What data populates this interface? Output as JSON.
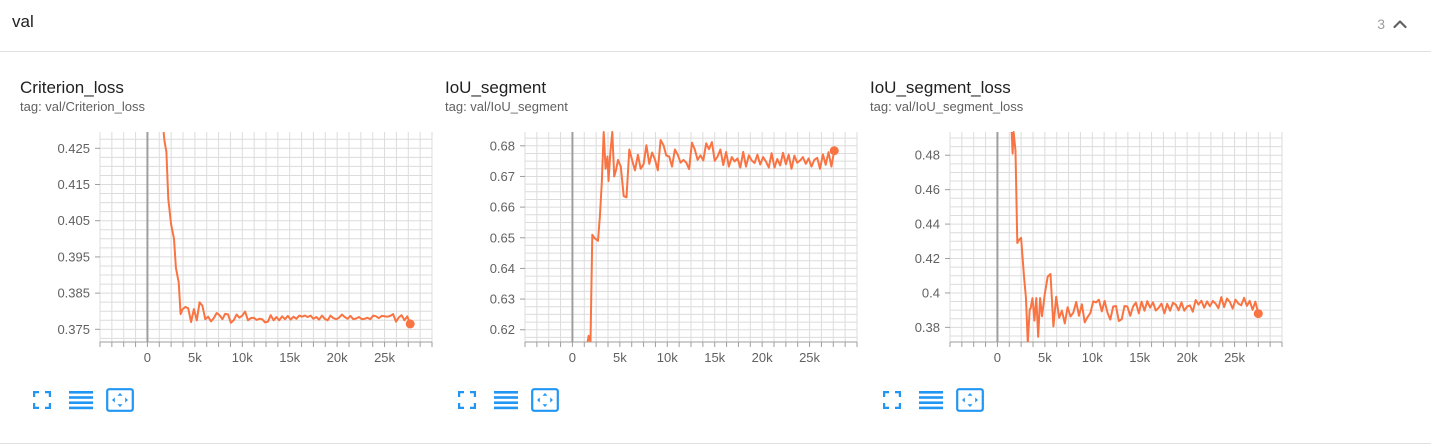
{
  "section": {
    "title": "val",
    "count": "3",
    "collapse_icon": "chevron-up-icon"
  },
  "colors": {
    "series": "#f97442",
    "grid": "#dcdcdc",
    "axis_tick": "#9e9e9e",
    "zero_line": "#9e9e9e",
    "tool_icon": "#2196f3"
  },
  "toolbar_icons": [
    "fullscreen-icon",
    "toggle-log-scale-icon",
    "fit-domain-icon"
  ],
  "chart_data": [
    {
      "type": "line",
      "title": "Criterion_loss",
      "subtitle": "tag: val/Criterion_loss",
      "xlabel": "",
      "ylabel": "",
      "xlim": [
        -5000,
        30000
      ],
      "ylim": [
        0.3715,
        0.4295
      ],
      "x_ticks": [
        0,
        5000,
        10000,
        15000,
        20000,
        25000
      ],
      "x_tick_labels": [
        "0",
        "5k",
        "10k",
        "15k",
        "20k",
        "25k"
      ],
      "y_ticks": [
        0.375,
        0.385,
        0.395,
        0.405,
        0.415,
        0.425
      ],
      "y_tick_labels": [
        "0.375",
        "0.385",
        "0.395",
        "0.405",
        "0.415",
        "0.425"
      ],
      "y_minor_step": 0.0025,
      "x_minor_step": 1250,
      "grid": true,
      "series": [
        {
          "x": [
            1700,
            1800,
            2000,
            2200,
            2500,
            2800,
            3000,
            3300,
            3500,
            3700,
            4000,
            4300,
            4600,
            4900,
            5200,
            5500,
            5800,
            6100,
            6400,
            6700,
            7000,
            7300,
            7600,
            7900,
            8200,
            8500,
            8800,
            9100,
            9400,
            9700,
            10000,
            10300,
            10600,
            10900,
            11200,
            11500,
            11800,
            12100,
            12400,
            12700,
            13000,
            13300,
            13600,
            13900,
            14200,
            14500,
            14800,
            15100,
            15400,
            15700,
            16000,
            16300,
            16600,
            16900,
            17200,
            17500,
            17800,
            18100,
            18400,
            18700,
            19000,
            19300,
            19600,
            19900,
            20200,
            20500,
            20800,
            21100,
            21400,
            21700,
            22000,
            22300,
            22600,
            22900,
            23200,
            23500,
            23800,
            24100,
            24400,
            24700,
            25000,
            25300,
            25600,
            25900,
            26200,
            26500,
            26800,
            27100,
            27400,
            27700
          ],
          "values": [
            0.4295,
            0.427,
            0.424,
            0.411,
            0.404,
            0.4,
            0.392,
            0.388,
            0.3792,
            0.3805,
            0.3812,
            0.3808,
            0.377,
            0.3806,
            0.3775,
            0.3825,
            0.3815,
            0.3778,
            0.3785,
            0.3772,
            0.3781,
            0.3795,
            0.3789,
            0.3778,
            0.3793,
            0.3791,
            0.3768,
            0.3775,
            0.3791,
            0.3782,
            0.3788,
            0.3799,
            0.3775,
            0.3781,
            0.3782,
            0.3776,
            0.3779,
            0.3778,
            0.3769,
            0.3771,
            0.3789,
            0.3775,
            0.3784,
            0.3775,
            0.3786,
            0.3778,
            0.3787,
            0.3777,
            0.3785,
            0.3779,
            0.3788,
            0.3785,
            0.3788,
            0.3784,
            0.3788,
            0.3779,
            0.3784,
            0.3777,
            0.3788,
            0.3779,
            0.3775,
            0.3788,
            0.3781,
            0.3778,
            0.3782,
            0.3791,
            0.3784,
            0.3779,
            0.3787,
            0.3778,
            0.378,
            0.3784,
            0.3778,
            0.3779,
            0.3782,
            0.3778,
            0.3788,
            0.3786,
            0.3781,
            0.3787,
            0.3786,
            0.3785,
            0.3787,
            0.3792,
            0.3771,
            0.3783,
            0.3789,
            0.3775,
            0.3786,
            0.3765
          ]
        }
      ]
    },
    {
      "type": "line",
      "title": "IoU_segment",
      "subtitle": "tag: val/IoU_segment",
      "xlabel": "",
      "ylabel": "",
      "xlim": [
        -5000,
        30000
      ],
      "ylim": [
        0.616,
        0.6845
      ],
      "x_ticks": [
        0,
        5000,
        10000,
        15000,
        20000,
        25000
      ],
      "x_tick_labels": [
        "0",
        "5k",
        "10k",
        "15k",
        "20k",
        "25k"
      ],
      "y_ticks": [
        0.62,
        0.63,
        0.64,
        0.65,
        0.66,
        0.67,
        0.68
      ],
      "y_tick_labels": [
        "0.62",
        "0.63",
        "0.64",
        "0.65",
        "0.66",
        "0.67",
        "0.68"
      ],
      "y_minor_step": 0.0025,
      "x_minor_step": 1250,
      "grid": true,
      "series": [
        {
          "x": [
            1600,
            1700,
            1900,
            2100,
            2300,
            2700,
            2900,
            3100,
            3300,
            3500,
            3700,
            3800,
            4000,
            4200,
            4400,
            4600,
            4800,
            5100,
            5400,
            5700,
            6000,
            6300,
            6600,
            6900,
            7200,
            7500,
            7800,
            8100,
            8400,
            8700,
            9000,
            9300,
            9600,
            9900,
            10200,
            10500,
            10800,
            11100,
            11400,
            11700,
            12000,
            12300,
            12600,
            12900,
            13200,
            13500,
            13800,
            14100,
            14400,
            14700,
            15000,
            15300,
            15600,
            15900,
            16200,
            16500,
            16800,
            17100,
            17400,
            17700,
            18000,
            18300,
            18600,
            18900,
            19200,
            19500,
            19800,
            20100,
            20400,
            20700,
            21000,
            21300,
            21600,
            21900,
            22200,
            22500,
            22800,
            23100,
            23400,
            23700,
            24000,
            24300,
            24600,
            24900,
            25200,
            25500,
            25800,
            26100,
            26400,
            26700,
            27000,
            27300,
            27600
          ],
          "values": [
            0.616,
            0.618,
            0.616,
            0.651,
            0.65,
            0.649,
            0.657,
            0.668,
            0.6845,
            0.6725,
            0.6765,
            0.6685,
            0.678,
            0.6845,
            0.67,
            0.6722,
            0.6754,
            0.6732,
            0.6636,
            0.6632,
            0.6788,
            0.6752,
            0.672,
            0.6771,
            0.6725,
            0.674,
            0.6802,
            0.6741,
            0.6778,
            0.6755,
            0.672,
            0.6819,
            0.6802,
            0.6768,
            0.6765,
            0.6732,
            0.6788,
            0.6771,
            0.6745,
            0.6754,
            0.6745,
            0.6724,
            0.681,
            0.6788,
            0.6754,
            0.6769,
            0.6752,
            0.6808,
            0.6789,
            0.6812,
            0.6751,
            0.6765,
            0.6788,
            0.6737,
            0.678,
            0.6732,
            0.6763,
            0.6749,
            0.6759,
            0.6729,
            0.678,
            0.6732,
            0.6769,
            0.6752,
            0.6744,
            0.6771,
            0.6739,
            0.6763,
            0.6749,
            0.6729,
            0.6776,
            0.6729,
            0.6757,
            0.6736,
            0.6777,
            0.674,
            0.6771,
            0.6725,
            0.6768,
            0.6745,
            0.6752,
            0.6763,
            0.6741,
            0.6759,
            0.6732,
            0.6754,
            0.6761,
            0.6725,
            0.6772,
            0.6738,
            0.6779,
            0.6732,
            0.6784
          ]
        }
      ]
    },
    {
      "type": "line",
      "title": "IoU_segment_loss",
      "subtitle": "tag: val/IoU_segment_loss",
      "xlabel": "",
      "ylabel": "",
      "xlim": [
        -5000,
        30000
      ],
      "ylim": [
        0.3715,
        0.4935
      ],
      "x_ticks": [
        0,
        5000,
        10000,
        15000,
        20000,
        25000
      ],
      "x_tick_labels": [
        "0",
        "5k",
        "10k",
        "15k",
        "20k",
        "25k"
      ],
      "y_ticks": [
        0.38,
        0.4,
        0.42,
        0.44,
        0.46,
        0.48
      ],
      "y_tick_labels": [
        "0.38",
        "0.4",
        "0.42",
        "0.44",
        "0.46",
        "0.48"
      ],
      "y_minor_step": 0.005,
      "x_minor_step": 1250,
      "grid": true,
      "series": [
        {
          "x": [
            1500,
            1600,
            1700,
            1900,
            2100,
            2300,
            2500,
            2800,
            3000,
            3200,
            3400,
            3500,
            3700,
            3900,
            4100,
            4300,
            4500,
            4700,
            5000,
            5300,
            5600,
            5900,
            6200,
            6500,
            6800,
            7100,
            7400,
            7700,
            8000,
            8300,
            8600,
            8900,
            9200,
            9500,
            9800,
            10100,
            10400,
            10700,
            11000,
            11300,
            11600,
            11900,
            12200,
            12500,
            12800,
            13100,
            13400,
            13700,
            14000,
            14300,
            14600,
            14900,
            15200,
            15500,
            15800,
            16100,
            16400,
            16700,
            17000,
            17300,
            17600,
            17900,
            18200,
            18500,
            18800,
            19100,
            19400,
            19700,
            20000,
            20300,
            20600,
            20900,
            21200,
            21500,
            21800,
            22100,
            22400,
            22700,
            23000,
            23300,
            23600,
            23900,
            24200,
            24500,
            24800,
            25100,
            25400,
            25700,
            26000,
            26300,
            26600,
            26900,
            27200,
            27500
          ],
          "values": [
            0.4935,
            0.481,
            0.4935,
            0.4825,
            0.429,
            0.431,
            0.432,
            0.4095,
            0.3975,
            0.371,
            0.3905,
            0.391,
            0.397,
            0.384,
            0.397,
            0.3745,
            0.397,
            0.3865,
            0.3998,
            0.4095,
            0.411,
            0.3805,
            0.3978,
            0.3856,
            0.3897,
            0.3823,
            0.3917,
            0.3863,
            0.3885,
            0.3948,
            0.3867,
            0.3934,
            0.3829,
            0.3859,
            0.3884,
            0.3951,
            0.3945,
            0.3961,
            0.3893,
            0.3954,
            0.3885,
            0.3845,
            0.3921,
            0.3924,
            0.3837,
            0.3847,
            0.3924,
            0.3921,
            0.3867,
            0.3921,
            0.3944,
            0.3882,
            0.3949,
            0.3897,
            0.3952,
            0.3915,
            0.3945,
            0.3898,
            0.3914,
            0.3938,
            0.3882,
            0.3937,
            0.3897,
            0.3942,
            0.3932,
            0.3899,
            0.3945,
            0.3897,
            0.3921,
            0.3927,
            0.3891,
            0.3959,
            0.3932,
            0.3955,
            0.3914,
            0.3951,
            0.3923,
            0.3953,
            0.3938,
            0.3911,
            0.3976,
            0.3918,
            0.3968,
            0.3948,
            0.3909,
            0.3961,
            0.3938,
            0.3928,
            0.3972,
            0.3925,
            0.3954,
            0.3902,
            0.3949,
            0.388
          ]
        }
      ]
    }
  ]
}
